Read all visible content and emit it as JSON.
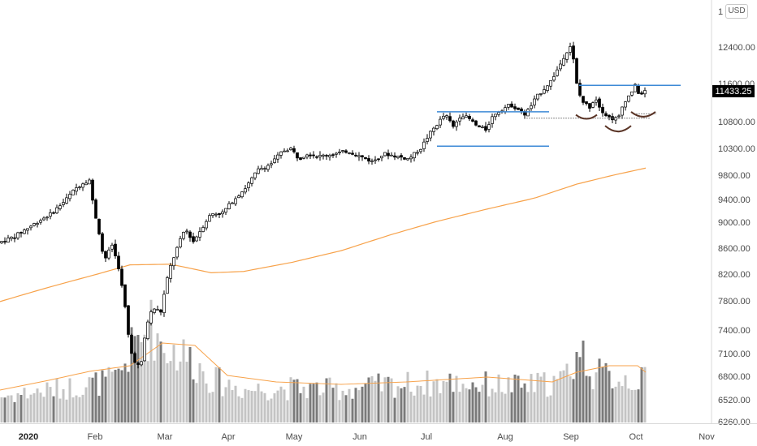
{
  "currency": "USD",
  "last_price_label": "11433.25",
  "colors": {
    "up": "#ffffff",
    "down": "#000000",
    "wick": "#000000",
    "ma": "#f7a24a",
    "level": "#3d8ad6",
    "arc": "#5a3426",
    "volume_light": "#c4c4c4",
    "volume_dark": "#7a7a7a",
    "price_label_bg": "#000000"
  },
  "chart_data": {
    "type": "candlestick",
    "title": "",
    "y_axis": {
      "ticks": [
        6260,
        6520,
        6800,
        7100,
        7400,
        7800,
        8200,
        8600,
        9000,
        9400,
        9800,
        10300,
        10800,
        11600,
        12400
      ],
      "tick_labels": [
        "6260.00",
        "6520.00",
        "6800.00",
        "7100.00",
        "7400.00",
        "7800.00",
        "8200.00",
        "8600.00",
        "9000.00",
        "9400.00",
        "9800.00",
        "10300.00",
        "10800.00",
        "11600.00",
        "12400.00"
      ],
      "top_label_partial": "1",
      "scale": "log"
    },
    "x_axis": {
      "labels": [
        "2020",
        "Feb",
        "Mar",
        "Apr",
        "May",
        "Jun",
        "Jul",
        "Aug",
        "Sep",
        "Oct",
        "Nov"
      ],
      "label_bold": [
        true,
        false,
        false,
        false,
        false,
        false,
        false,
        false,
        false,
        false,
        false
      ]
    },
    "price_anchors": [
      {
        "d": 0,
        "v": 8680
      },
      {
        "d": 20,
        "v": 8780
      },
      {
        "d": 45,
        "v": 8980
      },
      {
        "d": 65,
        "v": 9150
      },
      {
        "d": 80,
        "v": 9350
      },
      {
        "d": 95,
        "v": 9580
      },
      {
        "d": 105,
        "v": 9680
      },
      {
        "d": 112,
        "v": 9720
      },
      {
        "d": 118,
        "v": 9200
      },
      {
        "d": 125,
        "v": 8780
      },
      {
        "d": 130,
        "v": 8400
      },
      {
        "d": 140,
        "v": 8650
      },
      {
        "d": 148,
        "v": 8300
      },
      {
        "d": 155,
        "v": 7800
      },
      {
        "d": 162,
        "v": 7150
      },
      {
        "d": 168,
        "v": 7000
      },
      {
        "d": 175,
        "v": 6900
      },
      {
        "d": 182,
        "v": 7450
      },
      {
        "d": 190,
        "v": 7700
      },
      {
        "d": 200,
        "v": 7650
      },
      {
        "d": 210,
        "v": 8250
      },
      {
        "d": 220,
        "v": 8600
      },
      {
        "d": 230,
        "v": 8900
      },
      {
        "d": 240,
        "v": 8700
      },
      {
        "d": 250,
        "v": 8900
      },
      {
        "d": 262,
        "v": 9150
      },
      {
        "d": 275,
        "v": 9150
      },
      {
        "d": 290,
        "v": 9400
      },
      {
        "d": 305,
        "v": 9600
      },
      {
        "d": 320,
        "v": 9900
      },
      {
        "d": 335,
        "v": 10000
      },
      {
        "d": 350,
        "v": 10250
      },
      {
        "d": 360,
        "v": 10300
      },
      {
        "d": 370,
        "v": 10100
      },
      {
        "d": 380,
        "v": 10200
      },
      {
        "d": 395,
        "v": 10150
      },
      {
        "d": 415,
        "v": 10200
      },
      {
        "d": 430,
        "v": 10250
      },
      {
        "d": 445,
        "v": 10150
      },
      {
        "d": 460,
        "v": 10050
      },
      {
        "d": 475,
        "v": 10200
      },
      {
        "d": 490,
        "v": 10150
      },
      {
        "d": 505,
        "v": 10100
      },
      {
        "d": 520,
        "v": 10300
      },
      {
        "d": 530,
        "v": 10550
      },
      {
        "d": 540,
        "v": 10750
      },
      {
        "d": 550,
        "v": 10950
      },
      {
        "d": 560,
        "v": 10700
      },
      {
        "d": 570,
        "v": 10950
      },
      {
        "d": 580,
        "v": 10850
      },
      {
        "d": 590,
        "v": 10700
      },
      {
        "d": 600,
        "v": 10650
      },
      {
        "d": 610,
        "v": 10950
      },
      {
        "d": 620,
        "v": 11050
      },
      {
        "d": 630,
        "v": 11150
      },
      {
        "d": 640,
        "v": 11050
      },
      {
        "d": 648,
        "v": 10950
      },
      {
        "d": 655,
        "v": 11100
      },
      {
        "d": 662,
        "v": 11300
      },
      {
        "d": 670,
        "v": 11450
      },
      {
        "d": 680,
        "v": 11650
      },
      {
        "d": 690,
        "v": 11950
      },
      {
        "d": 698,
        "v": 12250
      },
      {
        "d": 705,
        "v": 12450
      },
      {
        "d": 709,
        "v": 12000
      },
      {
        "d": 713,
        "v": 11450
      },
      {
        "d": 720,
        "v": 11200
      },
      {
        "d": 728,
        "v": 11100
      },
      {
        "d": 735,
        "v": 11300
      },
      {
        "d": 742,
        "v": 11050
      },
      {
        "d": 750,
        "v": 10900
      },
      {
        "d": 758,
        "v": 10850
      },
      {
        "d": 764,
        "v": 10900
      },
      {
        "d": 770,
        "v": 11200
      },
      {
        "d": 777,
        "v": 11350
      },
      {
        "d": 784,
        "v": 11550
      },
      {
        "d": 790,
        "v": 11330
      },
      {
        "d": 795,
        "v": 11433
      }
    ],
    "moving_average": [
      {
        "d": 0,
        "v": 7790
      },
      {
        "d": 60,
        "v": 8000
      },
      {
        "d": 120,
        "v": 8200
      },
      {
        "d": 160,
        "v": 8340
      },
      {
        "d": 210,
        "v": 8350
      },
      {
        "d": 260,
        "v": 8220
      },
      {
        "d": 300,
        "v": 8240
      },
      {
        "d": 360,
        "v": 8380
      },
      {
        "d": 420,
        "v": 8560
      },
      {
        "d": 480,
        "v": 8800
      },
      {
        "d": 540,
        "v": 9020
      },
      {
        "d": 600,
        "v": 9230
      },
      {
        "d": 660,
        "v": 9430
      },
      {
        "d": 710,
        "v": 9650
      },
      {
        "d": 740,
        "v": 9750
      },
      {
        "d": 795,
        "v": 9930
      }
    ],
    "annotations": {
      "levels": [
        {
          "from": 538,
          "to": 676,
          "v": 11000
        },
        {
          "from": 538,
          "to": 676,
          "v": 10340
        },
        {
          "from": 713,
          "to": 838,
          "v": 11560
        }
      ],
      "dotted_lines": [
        {
          "from": 645,
          "to": 800,
          "v": 10870
        },
        {
          "from": 780,
          "to": 808,
          "v": 10960
        }
      ],
      "arcs": [
        {
          "cx": 722,
          "v": 10940,
          "w": 26,
          "depth": 5
        },
        {
          "cx": 761,
          "v": 10720,
          "w": 32,
          "depth": 7
        },
        {
          "cx": 792,
          "v": 11000,
          "w": 30,
          "depth": 6
        }
      ]
    },
    "volume": {
      "ma_anchors": [
        {
          "d": 0,
          "h": 40
        },
        {
          "d": 60,
          "h": 52
        },
        {
          "d": 110,
          "h": 63
        },
        {
          "d": 160,
          "h": 70
        },
        {
          "d": 200,
          "h": 98
        },
        {
          "d": 240,
          "h": 95
        },
        {
          "d": 280,
          "h": 58
        },
        {
          "d": 340,
          "h": 50
        },
        {
          "d": 420,
          "h": 47
        },
        {
          "d": 500,
          "h": 50
        },
        {
          "d": 600,
          "h": 56
        },
        {
          "d": 680,
          "h": 50
        },
        {
          "d": 710,
          "h": 62
        },
        {
          "d": 750,
          "h": 70
        },
        {
          "d": 785,
          "h": 70
        },
        {
          "d": 795,
          "h": 62
        }
      ],
      "envelope": [
        {
          "d": 0,
          "h": 38
        },
        {
          "d": 80,
          "h": 50
        },
        {
          "d": 140,
          "h": 62
        },
        {
          "d": 165,
          "h": 115
        },
        {
          "d": 185,
          "h": 140
        },
        {
          "d": 200,
          "h": 110
        },
        {
          "d": 230,
          "h": 95
        },
        {
          "d": 260,
          "h": 62
        },
        {
          "d": 300,
          "h": 48
        },
        {
          "d": 360,
          "h": 50
        },
        {
          "d": 420,
          "h": 48
        },
        {
          "d": 480,
          "h": 55
        },
        {
          "d": 560,
          "h": 58
        },
        {
          "d": 640,
          "h": 52
        },
        {
          "d": 690,
          "h": 60
        },
        {
          "d": 712,
          "h": 105
        },
        {
          "d": 730,
          "h": 70
        },
        {
          "d": 795,
          "h": 60
        }
      ]
    }
  }
}
